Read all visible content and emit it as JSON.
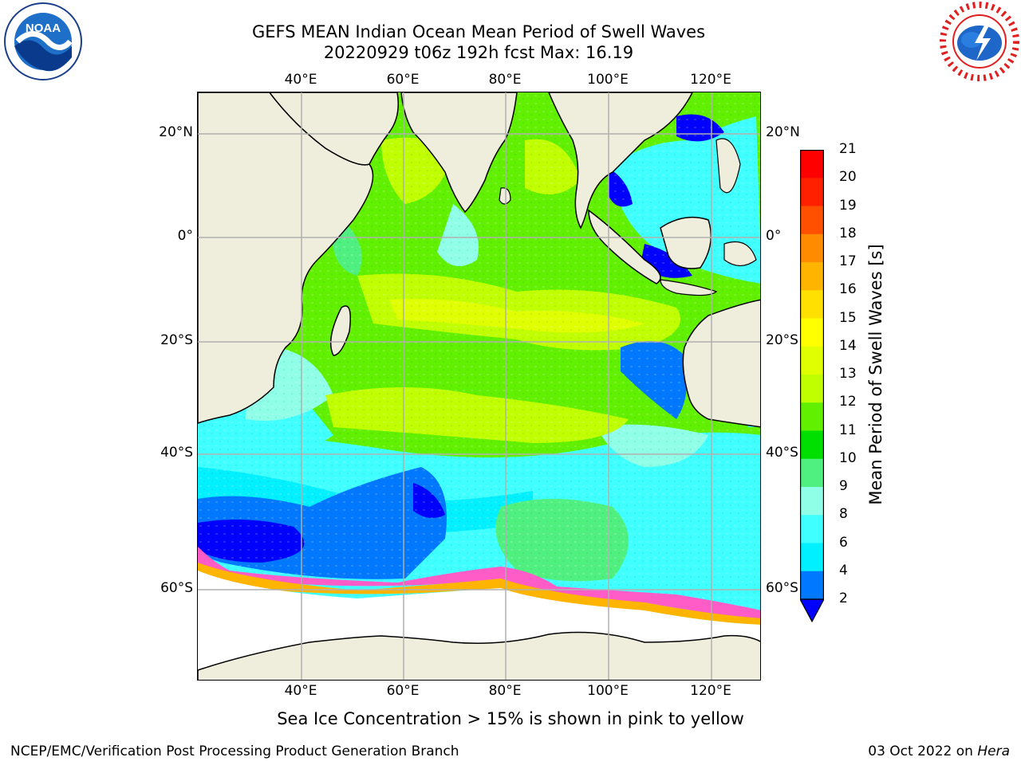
{
  "title": {
    "line1": "GEFS MEAN Indian Ocean Mean Period of Swell Waves",
    "line2": "20220929 t06z 192h fcst   Max: 16.19"
  },
  "map": {
    "lat_ticks": [
      "20°N",
      "0°",
      "20°S",
      "40°S",
      "60°S"
    ],
    "lon_ticks": [
      "40°E",
      "60°E",
      "80°E",
      "100°E",
      "120°E"
    ],
    "colors": {
      "land": "#efeedc",
      "ice_free_white": "#ffffff",
      "grid": "#b0b0b0",
      "coast": "#000000"
    }
  },
  "colorbar": {
    "title": "Mean Period of Swell Waves [s]",
    "labels": [
      "21",
      "20",
      "19",
      "18",
      "17",
      "16",
      "15",
      "14",
      "13",
      "12",
      "11",
      "10",
      "9",
      "8",
      "6",
      "4",
      "2"
    ],
    "bins": [
      {
        "from": 20,
        "to": 21,
        "color": "#ff0000"
      },
      {
        "from": 19,
        "to": 20,
        "color": "#ff2000"
      },
      {
        "from": 18,
        "to": 19,
        "color": "#ff5000"
      },
      {
        "from": 17,
        "to": 18,
        "color": "#ff8c00"
      },
      {
        "from": 16,
        "to": 17,
        "color": "#ffb400"
      },
      {
        "from": 15,
        "to": 16,
        "color": "#ffe000"
      },
      {
        "from": 14,
        "to": 15,
        "color": "#ffff00"
      },
      {
        "from": 13,
        "to": 14,
        "color": "#e0ff00"
      },
      {
        "from": 12,
        "to": 13,
        "color": "#c0ff00"
      },
      {
        "from": 11,
        "to": 12,
        "color": "#60f000"
      },
      {
        "from": 10,
        "to": 11,
        "color": "#00e000"
      },
      {
        "from": 9,
        "to": 10,
        "color": "#50f080"
      },
      {
        "from": 8,
        "to": 9,
        "color": "#90ffe8"
      },
      {
        "from": 6,
        "to": 8,
        "color": "#40ffff"
      },
      {
        "from": 4,
        "to": 6,
        "color": "#00f0ff"
      },
      {
        "from": 2,
        "to": 4,
        "color": "#0078ff"
      }
    ],
    "under_color": "#0000ff"
  },
  "ice_note": "Sea Ice Concentration > 15% is shown in pink to yellow",
  "footer": {
    "left": "NCEP/EMC/Verification Post Processing Product Generation Branch",
    "right_date": "03 Oct 2022 on ",
    "right_host": "Hera"
  }
}
